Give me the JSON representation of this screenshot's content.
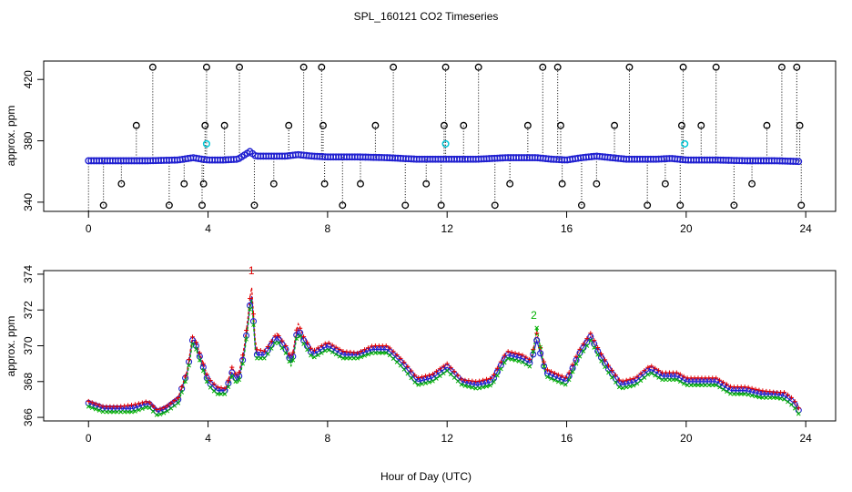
{
  "title": "SPL_160121  CO2 Timeseries",
  "xlabel": "Hour of Day (UTC)",
  "colors": {
    "black": "#000000",
    "blue": "#1f1fd0",
    "cyan": "#00c8d8",
    "red": "#e00000",
    "green": "#00b000",
    "orange": "#e08000"
  },
  "chart_data": [
    {
      "type": "scatter",
      "panel": "top",
      "ylabel": "approx. ppm",
      "xlim": [
        -1.5,
        25
      ],
      "ylim": [
        334,
        432
      ],
      "xticks": [
        "0",
        "4",
        "8",
        "12",
        "16",
        "20",
        "24"
      ],
      "yticks": [
        "340",
        "380",
        "420"
      ],
      "baseline_profile": {
        "x": [
          0,
          1,
          2,
          3,
          3.5,
          3.8,
          4,
          4.5,
          5,
          5.4,
          5.6,
          6,
          6.6,
          7,
          7.5,
          8,
          9,
          10,
          11,
          11.5,
          12,
          12.5,
          13,
          14,
          15,
          15.5,
          16,
          16.5,
          17,
          18,
          19,
          19.5,
          20,
          21,
          22,
          23,
          23.8
        ],
        "y": [
          367,
          367,
          367,
          367.5,
          369,
          368,
          367.5,
          367.5,
          368,
          373,
          370,
          370,
          370,
          371,
          370,
          369.5,
          369.5,
          369,
          368,
          368,
          368,
          368,
          368,
          369,
          369,
          368,
          367.5,
          369,
          370,
          368,
          368,
          368.5,
          367.5,
          367.5,
          367,
          367,
          366.5
        ]
      },
      "excursions": {
        "x": [
          0.5,
          1.1,
          1.6,
          2.15,
          2.7,
          3.2,
          3.8,
          3.85,
          3.9,
          3.95,
          4.55,
          5.05,
          5.55,
          6.2,
          6.7,
          7.2,
          7.8,
          7.85,
          7.9,
          8.5,
          9.1,
          9.6,
          10.2,
          10.6,
          11.3,
          11.8,
          11.9,
          11.95,
          12.55,
          13.05,
          13.6,
          14.1,
          14.7,
          15.2,
          15.7,
          15.8,
          15.85,
          16.5,
          17.0,
          17.6,
          18.1,
          18.7,
          19.3,
          19.8,
          19.85,
          19.9,
          20.5,
          21.0,
          21.6,
          22.2,
          22.7,
          23.2,
          23.7,
          23.8,
          23.85
        ],
        "y": [
          338,
          352,
          390,
          428,
          338,
          352,
          338,
          352,
          390,
          428,
          390,
          428,
          338,
          352,
          390,
          428,
          428,
          390,
          352,
          338,
          352,
          390,
          428,
          338,
          352,
          338,
          390,
          428,
          390,
          428,
          338,
          352,
          390,
          428,
          428,
          390,
          352,
          338,
          352,
          390,
          428,
          338,
          352,
          338,
          390,
          428,
          390,
          428,
          338,
          352,
          390,
          428,
          428,
          390,
          338
        ]
      },
      "highlighted_points": {
        "x": [
          3.95,
          11.95,
          19.95
        ],
        "y": [
          378,
          378,
          378
        ]
      }
    },
    {
      "type": "line",
      "panel": "bottom",
      "ylabel": "approx. ppm",
      "xlim": [
        -1.5,
        25
      ],
      "ylim": [
        365.8,
        374.2
      ],
      "xticks": [
        "0",
        "4",
        "8",
        "12",
        "16",
        "20",
        "24"
      ],
      "yticks": [
        "366",
        "368",
        "370",
        "372",
        "374"
      ],
      "x": [
        0,
        0.5,
        1,
        1.5,
        2,
        2.3,
        2.6,
        3,
        3.3,
        3.5,
        3.7,
        4,
        4.3,
        4.6,
        4.8,
        5,
        5.2,
        5.35,
        5.45,
        5.6,
        5.9,
        6.3,
        6.6,
        6.8,
        7.0,
        7.2,
        7.5,
        8,
        8.5,
        9,
        9.5,
        10,
        10.5,
        11,
        11.5,
        12,
        12.5,
        13,
        13.5,
        14,
        14.5,
        14.8,
        15,
        15.3,
        15.7,
        16,
        16.4,
        16.8,
        17.1,
        17.4,
        17.8,
        18.3,
        18.8,
        19.2,
        19.7,
        20,
        20.5,
        21,
        21.5,
        22,
        22.5,
        23,
        23.3,
        23.6,
        23.8
      ],
      "series": [
        {
          "marker": "o",
          "values": [
            366.8,
            366.5,
            366.5,
            366.5,
            366.8,
            366.3,
            366.5,
            367,
            368.5,
            370.5,
            369.5,
            368,
            367.5,
            367.5,
            368.5,
            368,
            369.5,
            371.5,
            373,
            369.5,
            369.5,
            370.5,
            369.8,
            369,
            371,
            370.3,
            369.5,
            370,
            369.5,
            369.5,
            369.8,
            369.8,
            369,
            368,
            368.2,
            368.8,
            368,
            367.8,
            368,
            369.5,
            369.3,
            369,
            370.3,
            368.5,
            368.2,
            368,
            369.5,
            370.5,
            369.5,
            368.7,
            367.8,
            368,
            368.7,
            368.3,
            368.3,
            368,
            368,
            368,
            367.5,
            367.5,
            367.3,
            367.3,
            367.2,
            366.8,
            366.3
          ]
        },
        {
          "marker": "+",
          "values": [
            366.9,
            366.6,
            366.6,
            366.7,
            366.9,
            366.4,
            366.6,
            367.1,
            368.6,
            370.7,
            369.7,
            368.2,
            367.7,
            367.6,
            368.8,
            368.2,
            369.8,
            371.8,
            373.5,
            369.8,
            369.7,
            370.7,
            370,
            369.2,
            371.3,
            370.5,
            369.7,
            370.2,
            369.7,
            369.6,
            370,
            370,
            369.2,
            368.2,
            368.4,
            369,
            368.1,
            368,
            368.2,
            369.7,
            369.5,
            369.2,
            370.7,
            368.7,
            368.4,
            368.2,
            369.7,
            370.7,
            369.7,
            368.9,
            368,
            368.2,
            368.9,
            368.5,
            368.5,
            368.2,
            368.2,
            368.2,
            367.7,
            367.7,
            367.5,
            367.4,
            367.4,
            367,
            366.4
          ]
        },
        {
          "marker": "x",
          "values": [
            366.6,
            366.3,
            366.3,
            366.3,
            366.6,
            366.1,
            366.3,
            366.8,
            368.3,
            370.3,
            369.3,
            367.8,
            367.3,
            367.3,
            368.3,
            367.8,
            369.3,
            371.3,
            372.8,
            369.3,
            369.3,
            370.3,
            369.6,
            368.8,
            370.8,
            370.1,
            369.3,
            369.8,
            369.3,
            369.3,
            369.6,
            369.6,
            368.8,
            367.8,
            368,
            368.6,
            367.8,
            367.6,
            367.8,
            369.3,
            369.1,
            368.8,
            371,
            368.3,
            368,
            367.8,
            369.3,
            370.3,
            369.3,
            368.5,
            367.6,
            367.8,
            368.5,
            368.1,
            368.1,
            367.8,
            367.8,
            367.8,
            367.3,
            367.3,
            367.1,
            367.1,
            367,
            366.6,
            366.1
          ]
        }
      ],
      "labels": [
        {
          "text": "1",
          "x": 5.45,
          "y": 374
        },
        {
          "text": "2",
          "x": 14.9,
          "y": 371.5
        }
      ]
    }
  ]
}
